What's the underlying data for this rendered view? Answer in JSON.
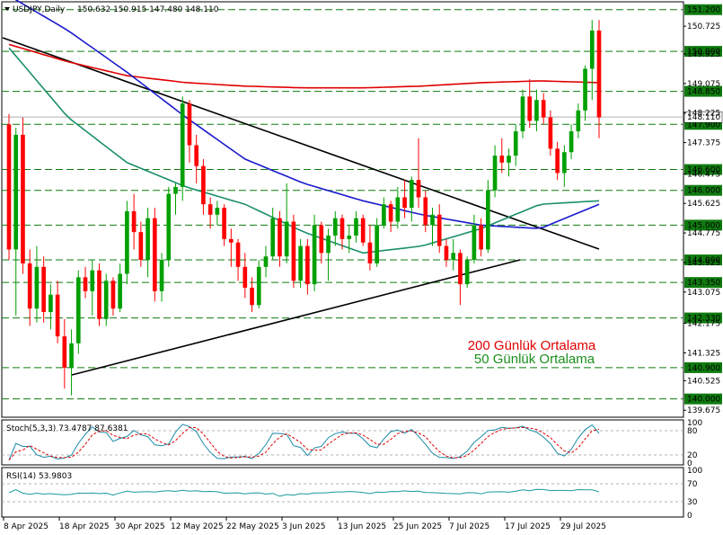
{
  "header": {
    "symbol": "USDJPY,Daily",
    "ohlc": "150.632 150.915 147.480 148.110"
  },
  "price_axis_ticks": [
    "150.725",
    "149.925",
    "149.075",
    "148.225",
    "147.375",
    "146.475",
    "145.625",
    "144.775",
    "143.925",
    "143.075",
    "142.175",
    "141.325",
    "140.525",
    "139.675"
  ],
  "date_labels": [
    "8 Apr 2025",
    "18 Apr 2025",
    "30 Apr 2025",
    "12 May 2025",
    "22 May 2025",
    "3 Jun 2025",
    "13 Jun 2025",
    "25 Jun 2025",
    "7 Jul 2025",
    "17 Jul 2025",
    "29 Jul 2025"
  ],
  "annotations": {
    "ma200": "200 Günlük Ortalama",
    "ma50": "50 Günlük Ortalama"
  },
  "stoch": {
    "label": "Stoch(5,3,3) 73.4787 87.6381",
    "ticks": [
      "100",
      "80",
      "20",
      "0"
    ]
  },
  "rsi": {
    "label": "RSI(14) 53.9803",
    "ticks": [
      "100",
      "70",
      "30",
      "0"
    ]
  },
  "current_price_label": "148.110",
  "colors": {
    "bull": "#00a000",
    "bear": "#ff0000",
    "ma200": "#e00000",
    "ma100": "#1a1acc",
    "ma50": "#1b8f6a",
    "level": "#0f7a0f",
    "trend": "#000000",
    "ann200": "#e00000",
    "ann50": "#1b8f1b"
  },
  "chart_data": {
    "type": "line",
    "title": "USDJPY,Daily",
    "ylim": [
      139.5,
      151.4
    ],
    "x": [
      "8 Apr 2025",
      "18 Apr 2025",
      "30 Apr 2025",
      "12 May 2025",
      "22 May 2025",
      "3 Jun 2025",
      "13 Jun 2025",
      "25 Jun 2025",
      "7 Jul 2025",
      "17 Jul 2025",
      "29 Jul 2025"
    ],
    "support_resistance_levels": [
      "151.200",
      "150.000",
      "148.850",
      "147.900",
      "146.600",
      "146.000",
      "145.000",
      "144.000",
      "143.350",
      "142.330",
      "140.900",
      "140.000"
    ],
    "series": [
      {
        "name": "200 Günlük Ortalama",
        "values": [
          150.2,
          149.7,
          149.3,
          149.1,
          149.0,
          148.95,
          148.95,
          149.0,
          149.1,
          149.15,
          149.1
        ]
      },
      {
        "name": "50 Günlük Ortalama",
        "values": [
          150.1,
          148.1,
          146.8,
          146.1,
          145.6,
          144.8,
          144.2,
          144.4,
          144.9,
          145.6,
          145.7
        ]
      }
    ],
    "ohlc": [
      [
        147.9,
        148.2,
        144.0,
        144.3
      ],
      [
        144.3,
        147.8,
        142.4,
        147.6
      ],
      [
        147.6,
        148.1,
        143.6,
        143.9
      ],
      [
        143.9,
        144.3,
        142.1,
        142.6
      ],
      [
        142.6,
        144.4,
        142.2,
        143.8
      ],
      [
        143.8,
        144.1,
        142.2,
        142.5
      ],
      [
        142.5,
        143.3,
        142.0,
        143.0
      ],
      [
        143.0,
        143.4,
        141.6,
        141.8
      ],
      [
        141.8,
        142.3,
        140.3,
        140.9
      ],
      [
        140.9,
        142.0,
        140.1,
        141.6
      ],
      [
        141.6,
        143.7,
        141.3,
        143.5
      ],
      [
        143.5,
        143.8,
        142.9,
        143.1
      ],
      [
        143.1,
        144.0,
        142.4,
        143.7
      ],
      [
        143.7,
        143.9,
        142.1,
        142.3
      ],
      [
        142.3,
        143.6,
        142.1,
        143.4
      ],
      [
        143.4,
        143.5,
        142.4,
        142.6
      ],
      [
        142.6,
        143.9,
        142.5,
        143.6
      ],
      [
        143.6,
        145.7,
        143.3,
        145.4
      ],
      [
        145.4,
        145.9,
        144.3,
        144.8
      ],
      [
        144.8,
        145.1,
        143.8,
        144.0
      ],
      [
        144.0,
        145.5,
        143.5,
        145.2
      ],
      [
        145.2,
        145.5,
        142.8,
        143.1
      ],
      [
        143.1,
        144.2,
        142.8,
        144.0
      ],
      [
        144.0,
        146.1,
        143.8,
        145.9
      ],
      [
        145.9,
        146.2,
        145.3,
        146.1
      ],
      [
        146.1,
        148.7,
        145.7,
        148.5
      ],
      [
        148.5,
        148.6,
        146.8,
        147.3
      ],
      [
        147.3,
        147.6,
        146.2,
        146.7
      ],
      [
        146.7,
        146.9,
        145.3,
        145.6
      ],
      [
        145.6,
        145.8,
        144.9,
        145.3
      ],
      [
        145.3,
        145.7,
        145.0,
        145.5
      ],
      [
        145.5,
        145.6,
        144.4,
        144.6
      ],
      [
        144.6,
        144.9,
        143.8,
        144.5
      ],
      [
        144.5,
        144.6,
        143.4,
        143.8
      ],
      [
        143.8,
        144.2,
        142.9,
        143.2
      ],
      [
        143.2,
        143.5,
        142.5,
        142.7
      ],
      [
        142.7,
        144.0,
        142.6,
        143.8
      ],
      [
        143.8,
        144.4,
        143.5,
        144.1
      ],
      [
        144.1,
        145.5,
        144.0,
        145.2
      ],
      [
        145.2,
        145.4,
        143.8,
        144.1
      ],
      [
        144.1,
        146.2,
        143.9,
        145.1
      ],
      [
        145.1,
        145.3,
        143.2,
        143.4
      ],
      [
        143.4,
        144.6,
        143.2,
        144.4
      ],
      [
        144.4,
        144.6,
        143.0,
        143.3
      ],
      [
        143.3,
        145.3,
        143.1,
        145.0
      ],
      [
        145.0,
        145.1,
        143.9,
        144.2
      ],
      [
        144.2,
        144.9,
        143.4,
        144.7
      ],
      [
        144.7,
        145.4,
        144.4,
        145.2
      ],
      [
        145.2,
        145.3,
        144.3,
        144.6
      ],
      [
        144.6,
        145.0,
        144.2,
        144.7
      ],
      [
        144.7,
        145.4,
        144.5,
        145.2
      ],
      [
        145.2,
        145.3,
        144.4,
        144.5
      ],
      [
        144.5,
        145.0,
        143.7,
        143.9
      ],
      [
        143.9,
        145.2,
        143.8,
        145.0
      ],
      [
        145.0,
        145.8,
        144.9,
        145.6
      ],
      [
        145.6,
        145.7,
        144.8,
        145.1
      ],
      [
        145.1,
        146.1,
        144.9,
        145.8
      ],
      [
        145.8,
        146.3,
        145.2,
        145.5
      ],
      [
        145.5,
        146.4,
        145.1,
        146.3
      ],
      [
        146.3,
        147.5,
        145.5,
        145.8
      ],
      [
        145.8,
        146.0,
        144.8,
        145.0
      ],
      [
        145.0,
        145.5,
        144.4,
        145.3
      ],
      [
        145.3,
        145.6,
        144.2,
        144.4
      ],
      [
        144.4,
        144.6,
        143.8,
        144.0
      ],
      [
        144.0,
        144.6,
        143.7,
        144.2
      ],
      [
        144.2,
        144.3,
        142.7,
        143.3
      ],
      [
        143.3,
        144.1,
        143.2,
        144.0
      ],
      [
        144.0,
        145.3,
        143.9,
        145.0
      ],
      [
        145.0,
        145.2,
        144.1,
        144.3
      ],
      [
        144.3,
        146.3,
        144.2,
        146.0
      ],
      [
        146.0,
        147.3,
        145.8,
        147.0
      ],
      [
        147.0,
        147.5,
        146.5,
        146.8
      ],
      [
        146.8,
        147.2,
        146.4,
        147.0
      ],
      [
        147.0,
        147.9,
        146.7,
        147.7
      ],
      [
        147.7,
        148.9,
        147.5,
        148.7
      ],
      [
        148.7,
        149.2,
        147.8,
        148.0
      ],
      [
        148.0,
        148.9,
        147.7,
        148.6
      ],
      [
        148.6,
        148.8,
        147.9,
        148.1
      ],
      [
        148.1,
        148.3,
        147.0,
        147.2
      ],
      [
        147.2,
        147.4,
        146.3,
        146.5
      ],
      [
        146.5,
        147.3,
        146.1,
        147.1
      ],
      [
        147.1,
        147.9,
        146.9,
        147.7
      ],
      [
        147.7,
        148.5,
        147.5,
        148.3
      ],
      [
        148.3,
        149.6,
        148.0,
        149.5
      ],
      [
        149.5,
        150.9,
        148.6,
        150.6
      ],
      [
        150.6,
        150.9,
        147.5,
        148.1
      ]
    ]
  }
}
